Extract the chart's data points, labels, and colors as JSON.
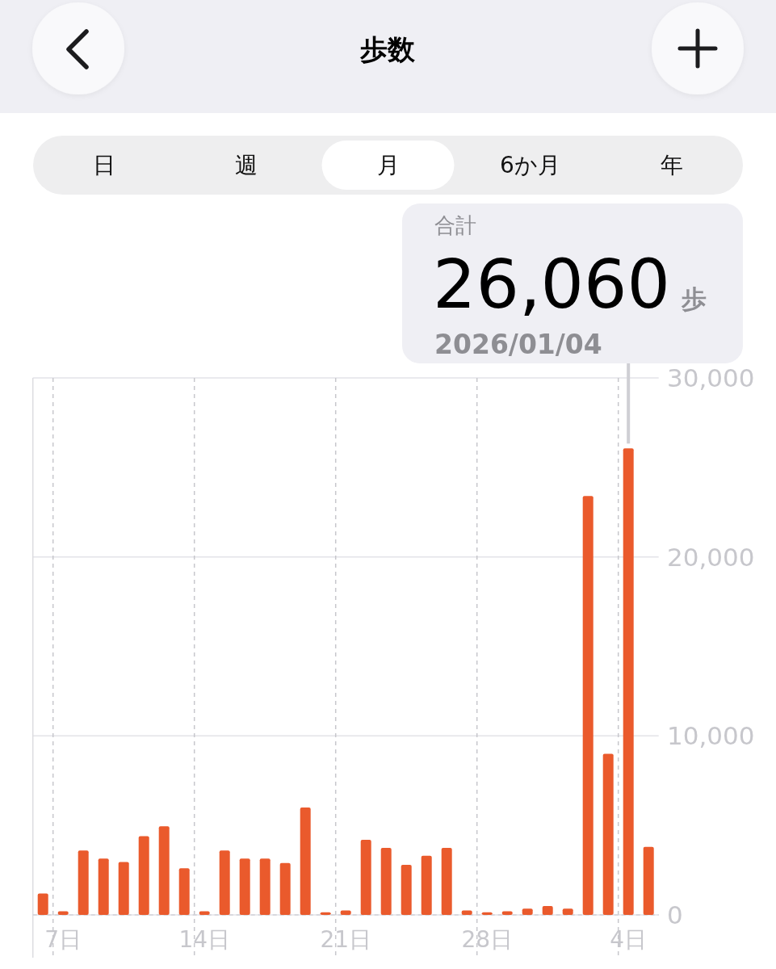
{
  "chart_data": {
    "type": "bar",
    "title": "歩数",
    "annotations": [
      "日",
      "週",
      "月",
      "6か月",
      "年"
    ],
    "categories": [
      null,
      "7日",
      null,
      null,
      null,
      null,
      null,
      null,
      "14日",
      null,
      null,
      null,
      null,
      null,
      null,
      "21日",
      null,
      null,
      null,
      null,
      null,
      null,
      "28日",
      null,
      null,
      null,
      null,
      null,
      null,
      "4日",
      null
    ],
    "values": [
      1200,
      200,
      3600,
      3150,
      2950,
      4400,
      4950,
      2600,
      200,
      3600,
      3150,
      3150,
      2900,
      6000,
      150,
      250,
      4200,
      3750,
      2800,
      3300,
      3750,
      250,
      150,
      200,
      350,
      500,
      350,
      23400,
      9000,
      26060,
      3800
    ],
    "color": "#ea5a2c",
    "ylim": [
      0,
      30000
    ],
    "yticks": [
      0,
      {
        "value": 10000,
        "label": "10,000"
      },
      {
        "value": 20000,
        "label": "20,000"
      },
      {
        "value": 30000,
        "label": "30,000"
      }
    ],
    "ref_lines": [
      {
        "axis": "x",
        "value": "4日",
        "label": "合計\n26,060 歩\n2026/01/04",
        "color": "#cfcfd4"
      }
    ],
    "grid": true
  }
}
